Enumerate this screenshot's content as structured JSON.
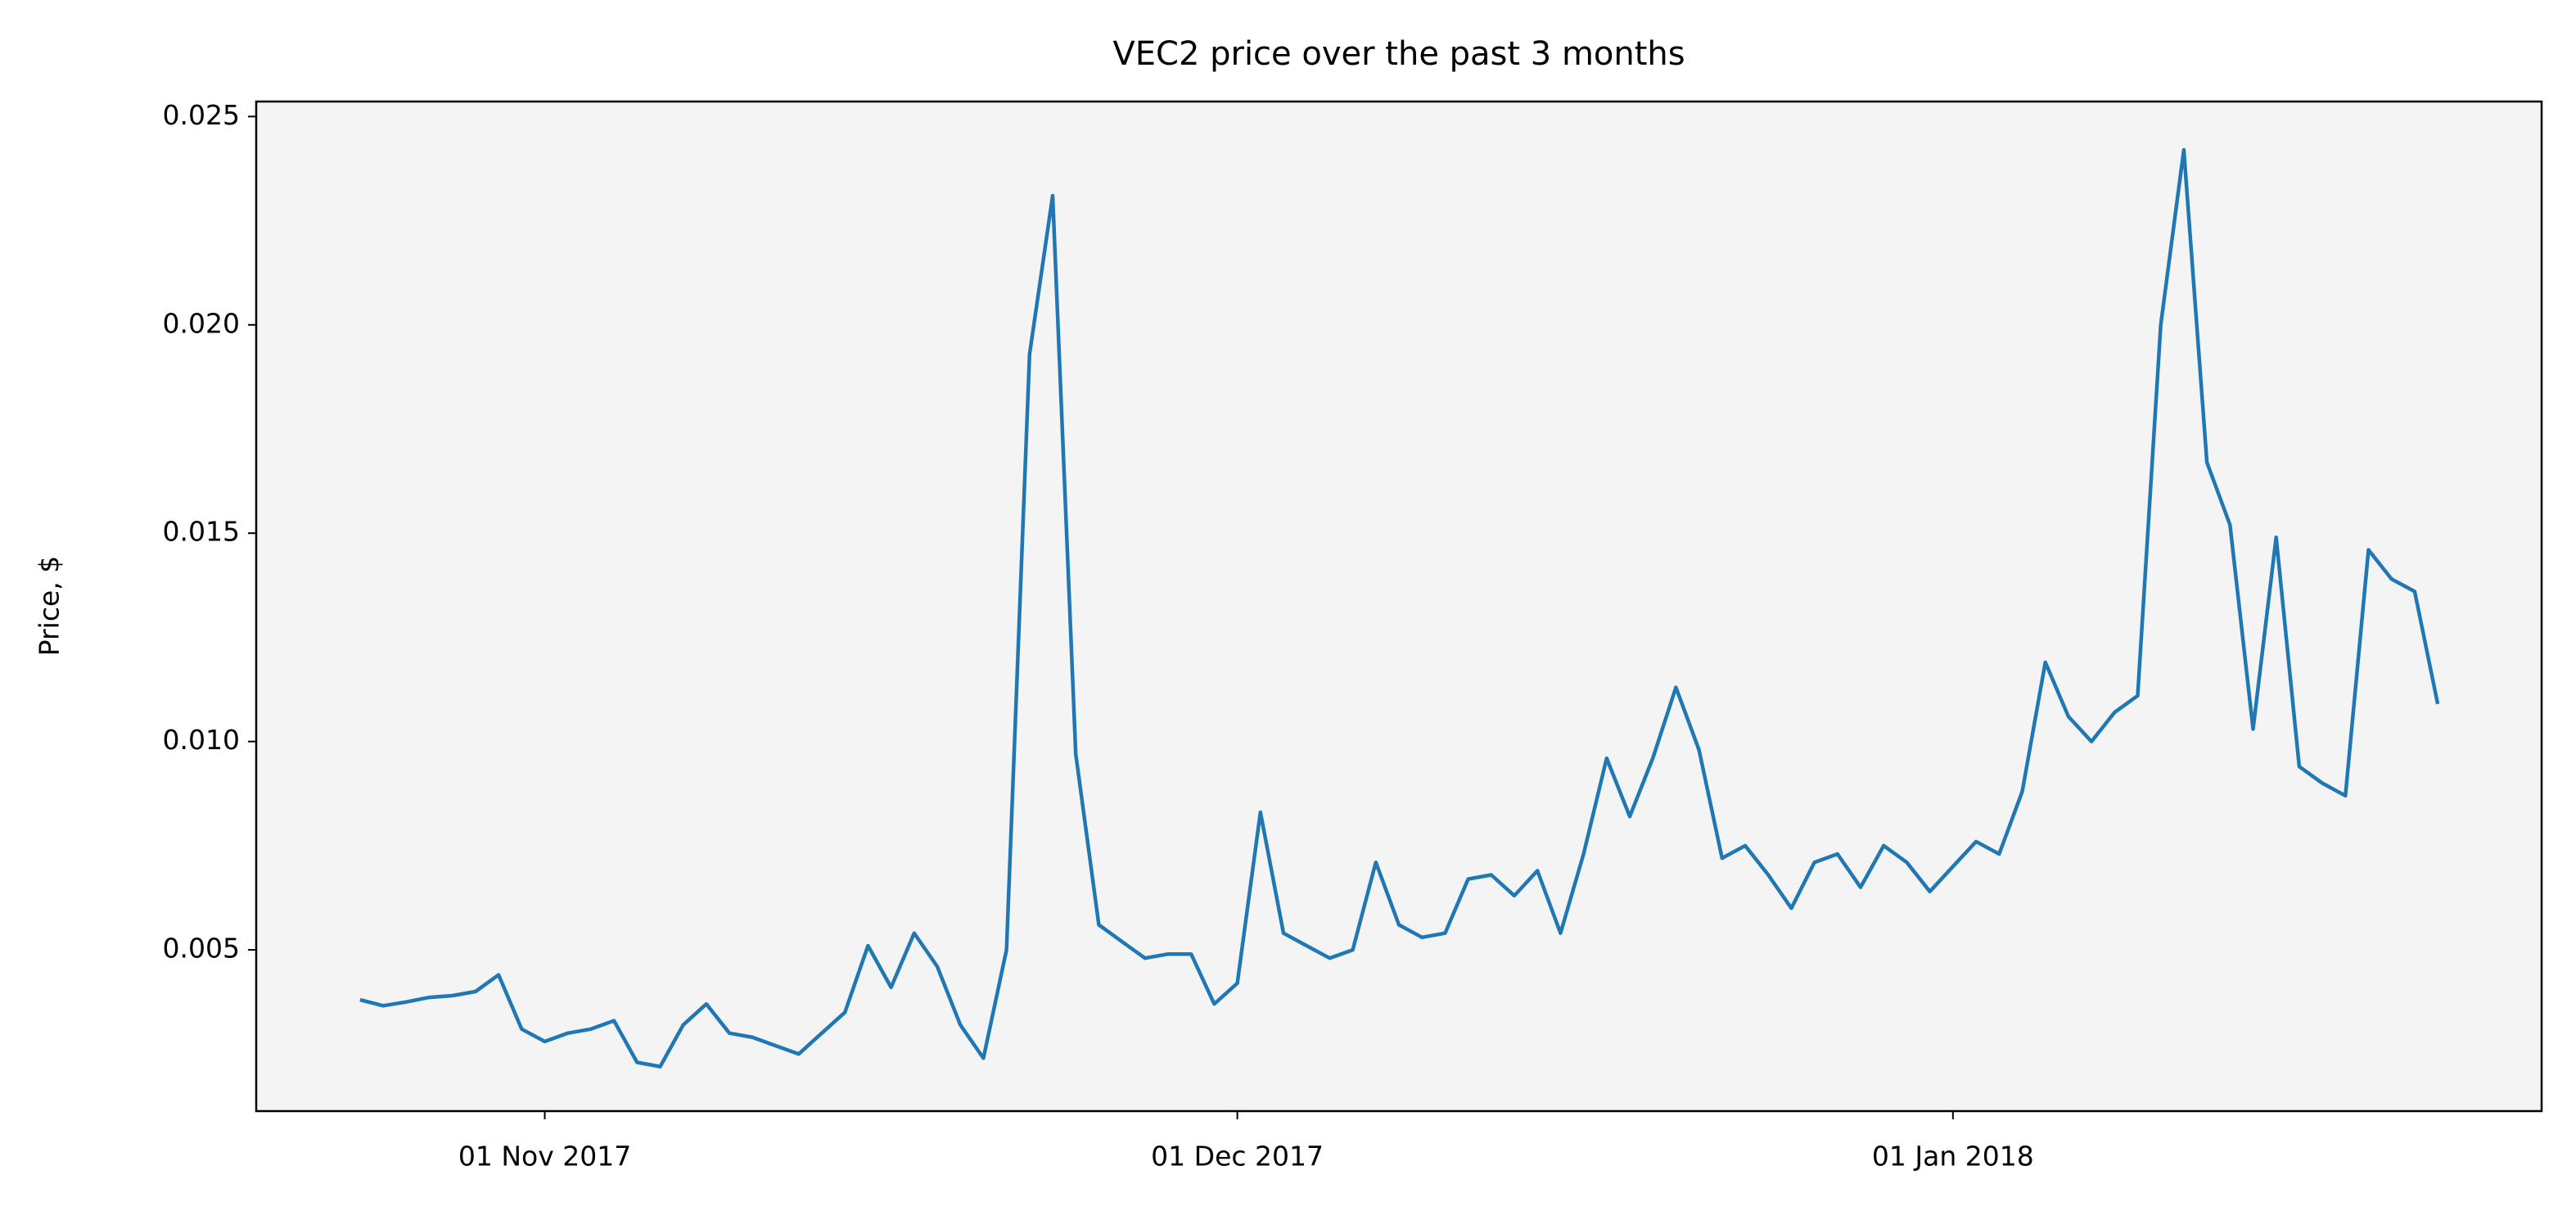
{
  "chart_data": {
    "type": "line",
    "title": "VEC2 price over the past 3 months",
    "ylabel": "Price, $",
    "background": "#f4f4f4",
    "x": [
      "2017-10-24",
      "2017-10-25",
      "2017-10-26",
      "2017-10-27",
      "2017-10-28",
      "2017-10-29",
      "2017-10-30",
      "2017-10-31",
      "2017-11-01",
      "2017-11-02",
      "2017-11-03",
      "2017-11-04",
      "2017-11-05",
      "2017-11-06",
      "2017-11-07",
      "2017-11-08",
      "2017-11-09",
      "2017-11-10",
      "2017-11-11",
      "2017-11-12",
      "2017-11-13",
      "2017-11-14",
      "2017-11-15",
      "2017-11-16",
      "2017-11-17",
      "2017-11-18",
      "2017-11-19",
      "2017-11-20",
      "2017-11-21",
      "2017-11-22",
      "2017-11-23",
      "2017-11-24",
      "2017-11-25",
      "2017-11-26",
      "2017-11-27",
      "2017-11-28",
      "2017-11-29",
      "2017-11-30",
      "2017-12-01",
      "2017-12-02",
      "2017-12-03",
      "2017-12-04",
      "2017-12-05",
      "2017-12-06",
      "2017-12-07",
      "2017-12-08",
      "2017-12-09",
      "2017-12-10",
      "2017-12-11",
      "2017-12-12",
      "2017-12-13",
      "2017-12-14",
      "2017-12-15",
      "2017-12-16",
      "2017-12-17",
      "2017-12-18",
      "2017-12-19",
      "2017-12-20",
      "2017-12-21",
      "2017-12-22",
      "2017-12-23",
      "2017-12-24",
      "2017-12-25",
      "2017-12-26",
      "2017-12-27",
      "2017-12-28",
      "2017-12-29",
      "2017-12-30",
      "2017-12-31",
      "2018-01-01",
      "2018-01-02",
      "2018-01-03",
      "2018-01-04",
      "2018-01-05",
      "2018-01-06",
      "2018-01-07",
      "2018-01-08",
      "2018-01-09",
      "2018-01-10",
      "2018-01-11",
      "2018-01-12",
      "2018-01-13",
      "2018-01-14",
      "2018-01-15",
      "2018-01-16",
      "2018-01-17",
      "2018-01-18",
      "2018-01-19",
      "2018-01-20",
      "2018-01-21",
      "2018-01-22"
    ],
    "series": [
      {
        "name": "VEC2",
        "color": "#1f77b4",
        "values": [
          0.0038,
          0.00366,
          0.00375,
          0.00386,
          0.0039,
          0.004,
          0.0044,
          0.0031,
          0.0028,
          0.003,
          0.0031,
          0.0033,
          0.0023,
          0.0022,
          0.0032,
          0.0037,
          0.003,
          0.0029,
          0.0027,
          0.0025,
          0.003,
          0.0035,
          0.0051,
          0.0041,
          0.0054,
          0.0046,
          0.0032,
          0.0024,
          0.005,
          0.0193,
          0.0231,
          0.0097,
          0.0056,
          0.0052,
          0.0048,
          0.0049,
          0.0049,
          0.0037,
          0.0042,
          0.0083,
          0.0054,
          0.0051,
          0.0048,
          0.005,
          0.0071,
          0.0056,
          0.0053,
          0.0054,
          0.0067,
          0.0068,
          0.0063,
          0.0069,
          0.0054,
          0.0073,
          0.0096,
          0.0082,
          0.0096,
          0.0113,
          0.0098,
          0.0072,
          0.0075,
          0.0068,
          0.006,
          0.0071,
          0.0073,
          0.0065,
          0.0075,
          0.0071,
          0.0064,
          0.007,
          0.0076,
          0.0073,
          0.0088,
          0.0119,
          0.0106,
          0.01,
          0.0107,
          0.0111,
          0.02,
          0.0242,
          0.0167,
          0.0152,
          0.0103,
          0.0149,
          0.0094,
          0.009,
          0.0087,
          0.0146,
          0.0139,
          0.0136,
          0.0109
        ]
      }
    ],
    "xlim": [
      "2017-10-19T12:00",
      "2018-01-26T12:00"
    ],
    "xticks": [
      {
        "value": "2017-11-01",
        "label": "01 Nov 2017"
      },
      {
        "value": "2017-12-01",
        "label": "01 Dec 2017"
      },
      {
        "value": "2018-01-01",
        "label": "01 Jan 2018"
      }
    ],
    "ylim": [
      0.00113,
      0.02536
    ],
    "yticks": [
      0.005,
      {
        "value": 0.01,
        "label": "0.010"
      },
      0.015,
      {
        "value": 0.02,
        "label": "0.020"
      },
      0.025
    ]
  }
}
